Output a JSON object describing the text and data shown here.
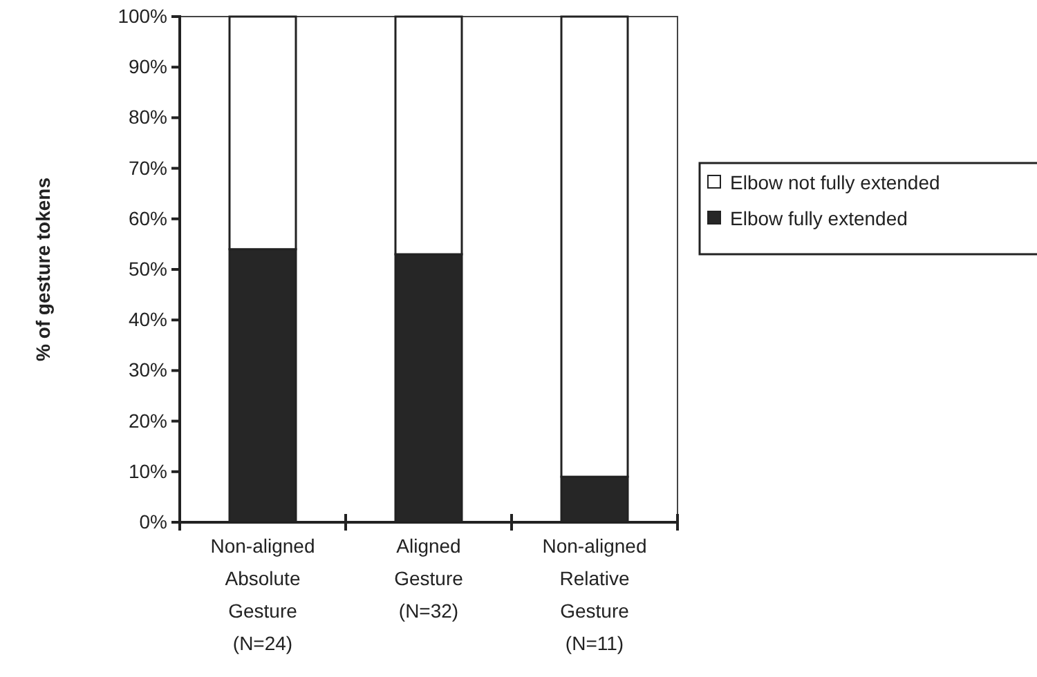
{
  "chart_data": {
    "type": "bar",
    "stacked": true,
    "ylabel": "% of gesture tokens",
    "categories": [
      "Non-aligned\nAbsolute\nGesture\n(N=24)",
      "Aligned\nGesture\n(N=32)",
      "Non-aligned\nRelative\nGesture\n(N=11)"
    ],
    "series": [
      {
        "name": "Elbow fully extended",
        "color": "#262626",
        "values": [
          54,
          53,
          9
        ]
      },
      {
        "name": "Elbow not fully extended",
        "color": "#ffffff",
        "values": [
          46,
          47,
          91
        ]
      }
    ],
    "ylim": [
      0,
      100
    ],
    "yticks": [
      {
        "value": 0,
        "label": "0%"
      },
      {
        "value": 10,
        "label": "10%"
      },
      {
        "value": 20,
        "label": "20%"
      },
      {
        "value": 30,
        "label": "30%"
      },
      {
        "value": 40,
        "label": "40%"
      },
      {
        "value": 50,
        "label": "50%"
      },
      {
        "value": 60,
        "label": "60%"
      },
      {
        "value": 70,
        "label": "70%"
      },
      {
        "value": 80,
        "label": "80%"
      },
      {
        "value": 90,
        "label": "90%"
      },
      {
        "value": 100,
        "label": "100%"
      }
    ],
    "grid": false,
    "legend": "right"
  }
}
